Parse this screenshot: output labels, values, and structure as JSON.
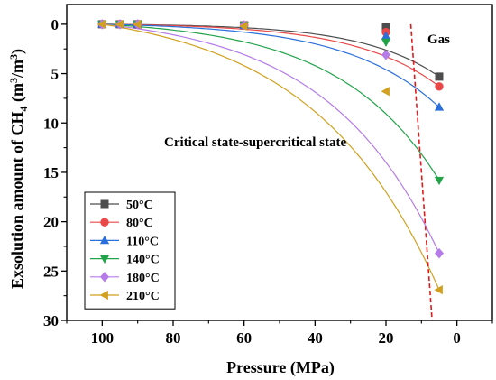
{
  "chart_data": {
    "type": "scatter",
    "xlabel": "Pressure (MPa)",
    "ylabel_main": "Exsolution amount of CH",
    "ylabel_sub": "4",
    "ylabel_unit_open": " (m",
    "ylabel_sup1": "3",
    "ylabel_unit_mid": "/m",
    "ylabel_sup2": "3",
    "ylabel_unit_close": ")",
    "xlim": [
      110,
      -10
    ],
    "ylim": [
      30,
      -2
    ],
    "x_reversed": true,
    "y_reversed": true,
    "x_ticks": [
      100,
      80,
      60,
      40,
      20,
      0
    ],
    "y_ticks": [
      0,
      5,
      10,
      15,
      20,
      25,
      30
    ],
    "grid": false,
    "legend_position": "bottom-left",
    "annotations": {
      "gas": "Gas",
      "critical": "Critical state-supercritical state"
    },
    "boundary_line": {
      "style": "dashed",
      "color": "#e31a1c",
      "points": [
        [
          13,
          0
        ],
        [
          7,
          30
        ]
      ]
    },
    "series": [
      {
        "name": "50°C",
        "marker": "square",
        "color": "#4d4d4d",
        "x": [
          100,
          95,
          90,
          60,
          20,
          5
        ],
        "y": [
          0,
          0,
          0,
          0.1,
          0.3,
          5.3
        ]
      },
      {
        "name": "80°C",
        "marker": "circle",
        "color": "#ea4848",
        "x": [
          100,
          95,
          90,
          60,
          20,
          5
        ],
        "y": [
          0,
          0,
          0,
          0.1,
          0.8,
          6.3
        ]
      },
      {
        "name": "110°C",
        "marker": "triangle-up",
        "color": "#2a6fdb",
        "x": [
          100,
          95,
          90,
          60,
          20,
          5
        ],
        "y": [
          0,
          0,
          0,
          0.1,
          1.2,
          8.4
        ]
      },
      {
        "name": "140°C",
        "marker": "triangle-down",
        "color": "#22a34a",
        "x": [
          100,
          95,
          90,
          60,
          20,
          5
        ],
        "y": [
          0,
          0,
          0,
          0.1,
          1.8,
          15.8
        ]
      },
      {
        "name": "180°C",
        "marker": "diamond",
        "color": "#b57be8",
        "x": [
          100,
          95,
          90,
          60,
          20,
          5
        ],
        "y": [
          0,
          0,
          0,
          0.1,
          3.1,
          23.2
        ]
      },
      {
        "name": "210°C",
        "marker": "triangle-left",
        "color": "#d1a01f",
        "x": [
          100,
          95,
          90,
          60,
          20,
          5
        ],
        "y": [
          0,
          0,
          0,
          0.2,
          6.8,
          26.9
        ]
      }
    ]
  }
}
